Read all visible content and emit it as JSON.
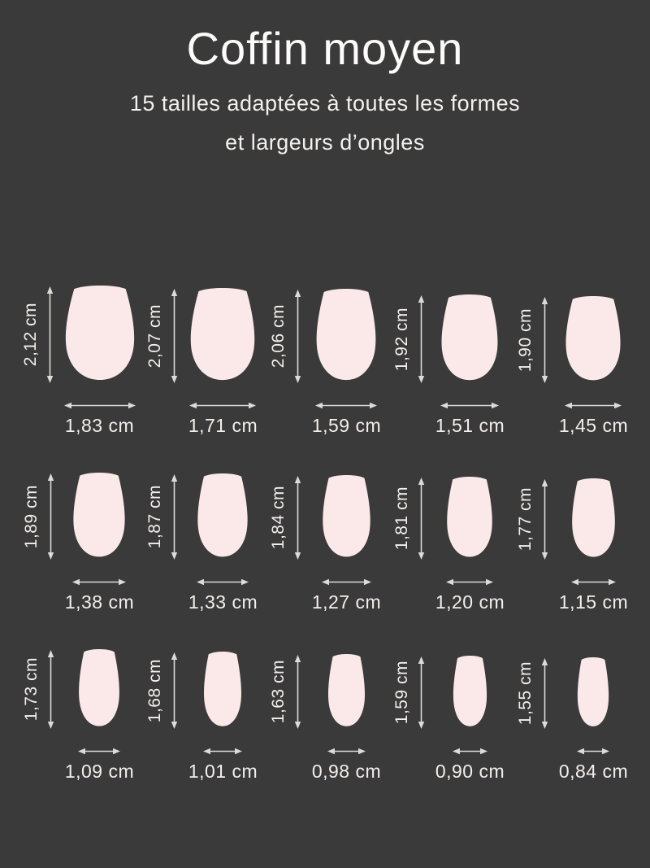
{
  "header": {
    "title": "Coffin moyen",
    "subtitle_line1": "15 tailles adaptées à toutes les formes",
    "subtitle_line2": "et largeurs d’ongles"
  },
  "colors": {
    "background": "#3a3a3a",
    "nail_fill": "#fae9e8",
    "text": "#f2efec",
    "arrow": "#dddbd9"
  },
  "chart_data": {
    "type": "table",
    "title": "Coffin moyen",
    "subtitle": "15 tailles adaptées à toutes les formes et largeurs d’ongles",
    "unit": "cm",
    "columns": [
      "hauteur",
      "largeur"
    ],
    "layout": "5 columns x 3 rows, sizes ordered largest to smallest",
    "sizes": [
      {
        "height": "2,12 cm",
        "width": "1,83 cm"
      },
      {
        "height": "2,07 cm",
        "width": "1,71 cm"
      },
      {
        "height": "2,06 cm",
        "width": "1,59 cm"
      },
      {
        "height": "1,92 cm",
        "width": "1,51 cm"
      },
      {
        "height": "1,90 cm",
        "width": "1,45 cm"
      },
      {
        "height": "1,89 cm",
        "width": "1,38 cm"
      },
      {
        "height": "1,87 cm",
        "width": "1,33 cm"
      },
      {
        "height": "1,84 cm",
        "width": "1,27 cm"
      },
      {
        "height": "1,81 cm",
        "width": "1,20 cm"
      },
      {
        "height": "1,77 cm",
        "width": "1,15 cm"
      },
      {
        "height": "1,73 cm",
        "width": "1,09 cm"
      },
      {
        "height": "1,68 cm",
        "width": "1,01 cm"
      },
      {
        "height": "1,63 cm",
        "width": "0,98 cm"
      },
      {
        "height": "1,59 cm",
        "width": "0,90 cm"
      },
      {
        "height": "1,55 cm",
        "width": "0,84 cm"
      }
    ]
  }
}
